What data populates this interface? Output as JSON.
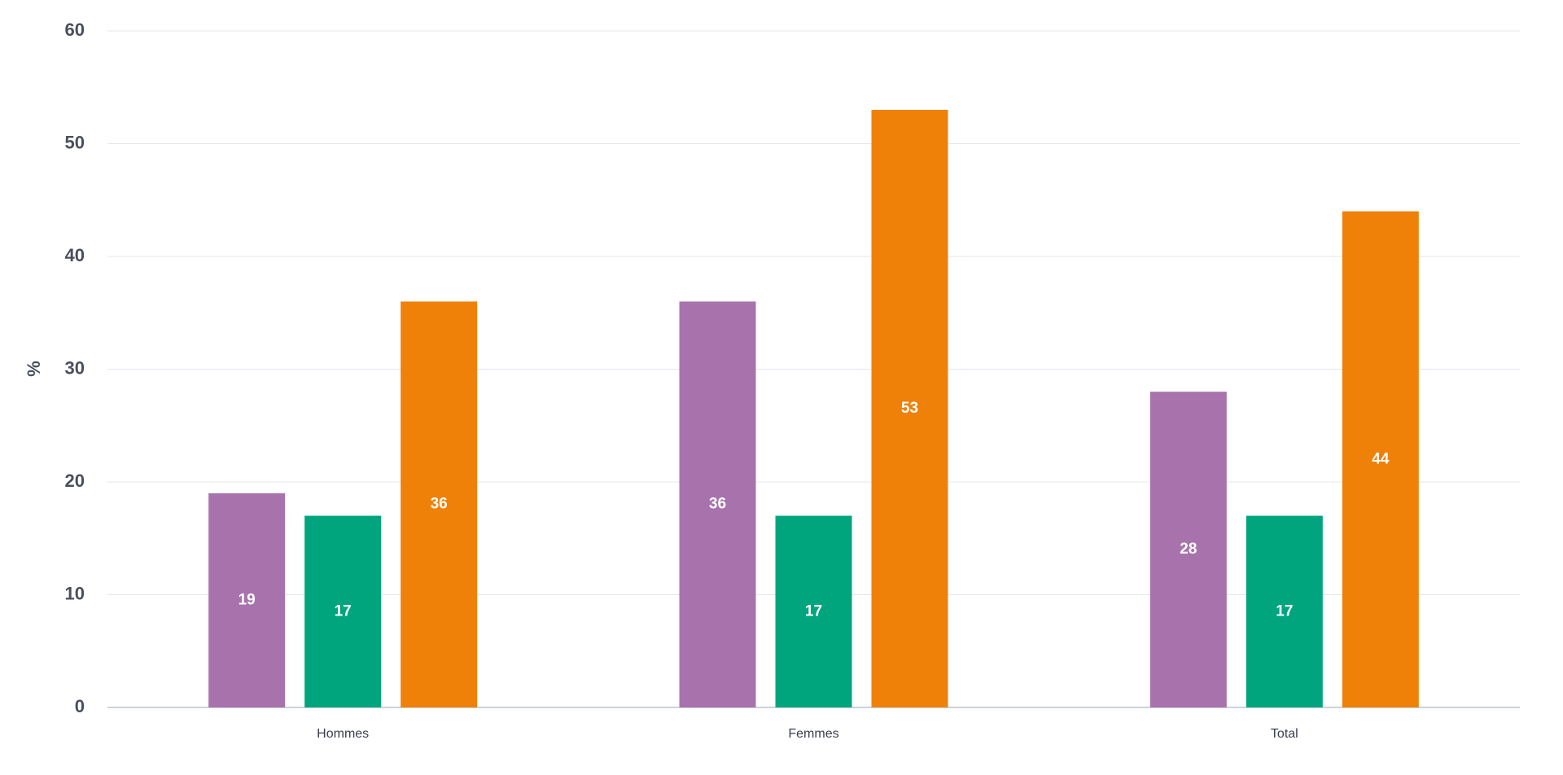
{
  "chart_data": {
    "type": "bar",
    "y_label": "%",
    "categories": [
      "Hommes",
      "Femmes",
      "Total"
    ],
    "series": [
      {
        "color": "#a873ad",
        "values": [
          19,
          36,
          28
        ]
      },
      {
        "color": "#00a57e",
        "values": [
          17,
          17,
          17
        ]
      },
      {
        "color": "#ef8109",
        "values": [
          36,
          53,
          44
        ]
      }
    ],
    "ylim": [
      0,
      60
    ],
    "yticks": [
      0,
      10,
      20,
      30,
      40,
      50,
      60
    ],
    "grid": true
  }
}
